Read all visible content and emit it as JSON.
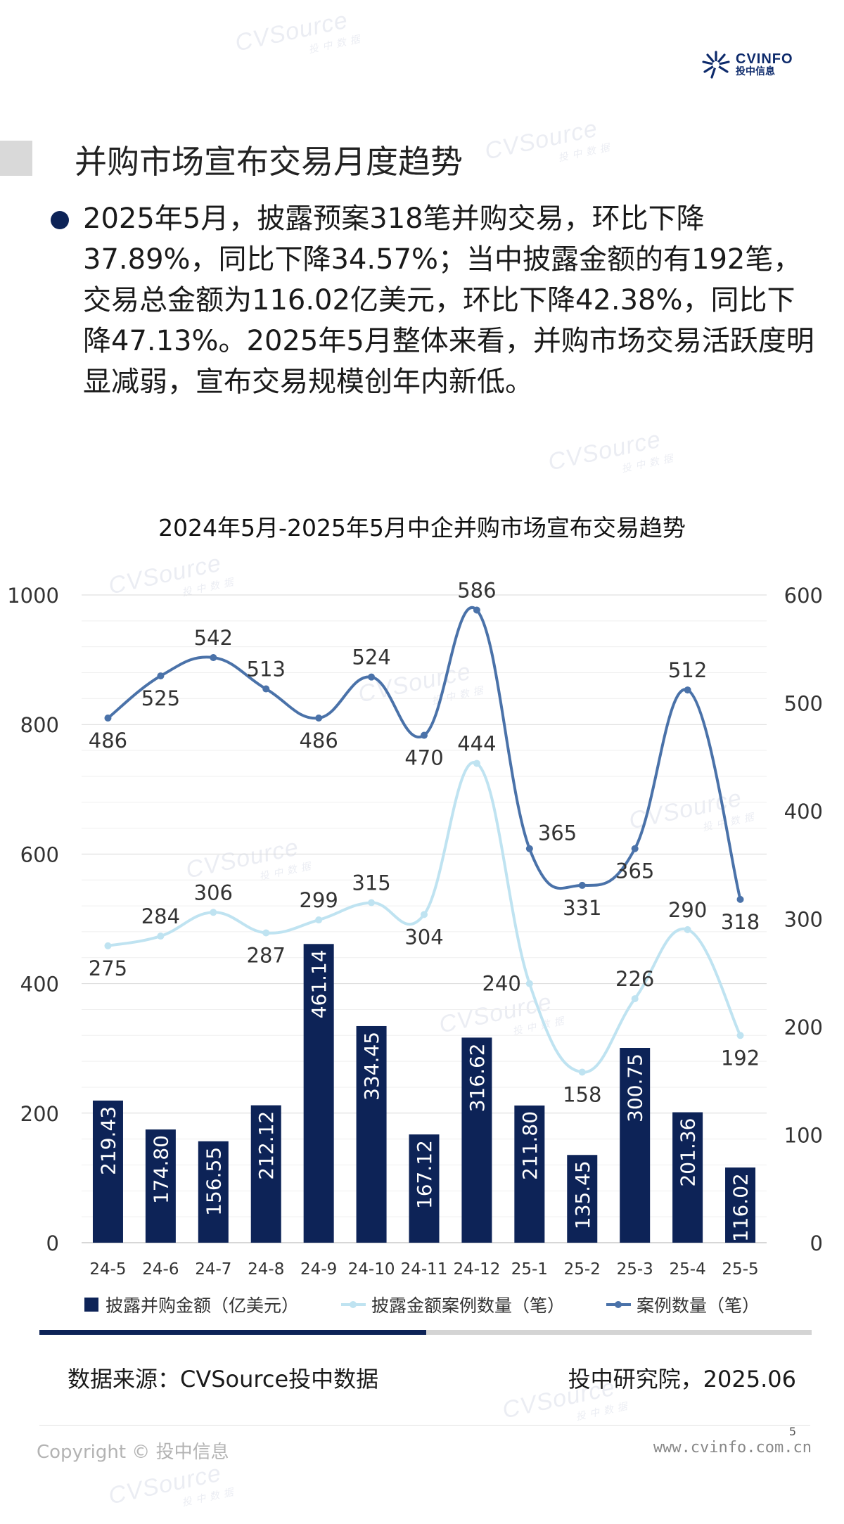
{
  "brand": {
    "logo_en": "CVINFO",
    "logo_cn": "投中信息",
    "watermark_text": "CVSource",
    "watermark_sub": "投中数据"
  },
  "title": "并购市场宣布交易月度趋势",
  "summary": "2025年5月，披露预案318笔并购交易，环比下降37.89%，同比下降34.57%；当中披露金额的有192笔，交易总金额为116.02亿美元，环比下降42.38%，同比下降47.13%。2025年5月整体来看，并购市场交易活跃度明显减弱，宣布交易规模创年内新低。",
  "chart_data": {
    "type": "bar",
    "title": "2024年5月-2025年5月中企并购市场宣布交易趋势",
    "categories": [
      "24-5",
      "24-6",
      "24-7",
      "24-8",
      "24-9",
      "24-10",
      "24-11",
      "24-12",
      "25-1",
      "25-2",
      "25-3",
      "25-4",
      "25-5"
    ],
    "y_left": {
      "min": 0,
      "max": 1000,
      "ticks": [
        "0",
        "200",
        "400",
        "600",
        "800",
        "1000"
      ]
    },
    "y_right": {
      "min": 0,
      "max": 600,
      "ticks": [
        "0",
        "100",
        "200",
        "300",
        "400",
        "500",
        "600"
      ]
    },
    "grid": true,
    "series": [
      {
        "name": "披露并购金额（亿美元）",
        "type": "bar",
        "axis": "left",
        "color": "#0d2357",
        "values": [
          219.43,
          174.8,
          156.55,
          212.12,
          461.14,
          334.45,
          167.12,
          316.62,
          211.8,
          135.45,
          300.75,
          201.36,
          116.02
        ],
        "labels": [
          "219.43",
          "174.80",
          "156.55",
          "212.12",
          "461.14",
          "334.45",
          "167.12",
          "316.62",
          "211.80",
          "135.45",
          "300.75",
          "201.36",
          "116.02"
        ]
      },
      {
        "name": "披露金额案例数量（笔）",
        "type": "line",
        "axis": "right",
        "color": "#bfe3f1",
        "values": [
          275,
          284,
          306,
          287,
          299,
          315,
          304,
          444,
          240,
          158,
          226,
          290,
          192
        ],
        "labels": [
          "275",
          "284",
          "306",
          "287",
          "299",
          "315",
          "304",
          "444",
          "240",
          "158",
          "226",
          "290",
          "192"
        ],
        "label_pos": [
          "below",
          "above",
          "above",
          "below",
          "above",
          "above",
          "below",
          "above",
          "left",
          "below",
          "above",
          "above",
          "below"
        ]
      },
      {
        "name": "案例数量（笔）",
        "type": "line",
        "axis": "right",
        "color": "#4a72a9",
        "values": [
          486,
          525,
          542,
          513,
          486,
          524,
          470,
          586,
          365,
          331,
          365,
          512,
          318
        ],
        "labels": [
          "486",
          "525",
          "542",
          "513",
          "486",
          "524",
          "470",
          "586",
          "365",
          "331",
          "365",
          "512",
          "318"
        ],
        "label_pos": [
          "below",
          "below",
          "above",
          "above",
          "below",
          "above",
          "below",
          "above",
          "right",
          "below",
          "below",
          "above",
          "below"
        ]
      }
    ],
    "legend": "bottom"
  },
  "footer": {
    "source": "数据来源：CVSource投中数据",
    "credit": "投中研究院，2025.06",
    "page": "5",
    "copyright": "Copyright © 投中信息",
    "website": "www.cvinfo.com.cn"
  }
}
